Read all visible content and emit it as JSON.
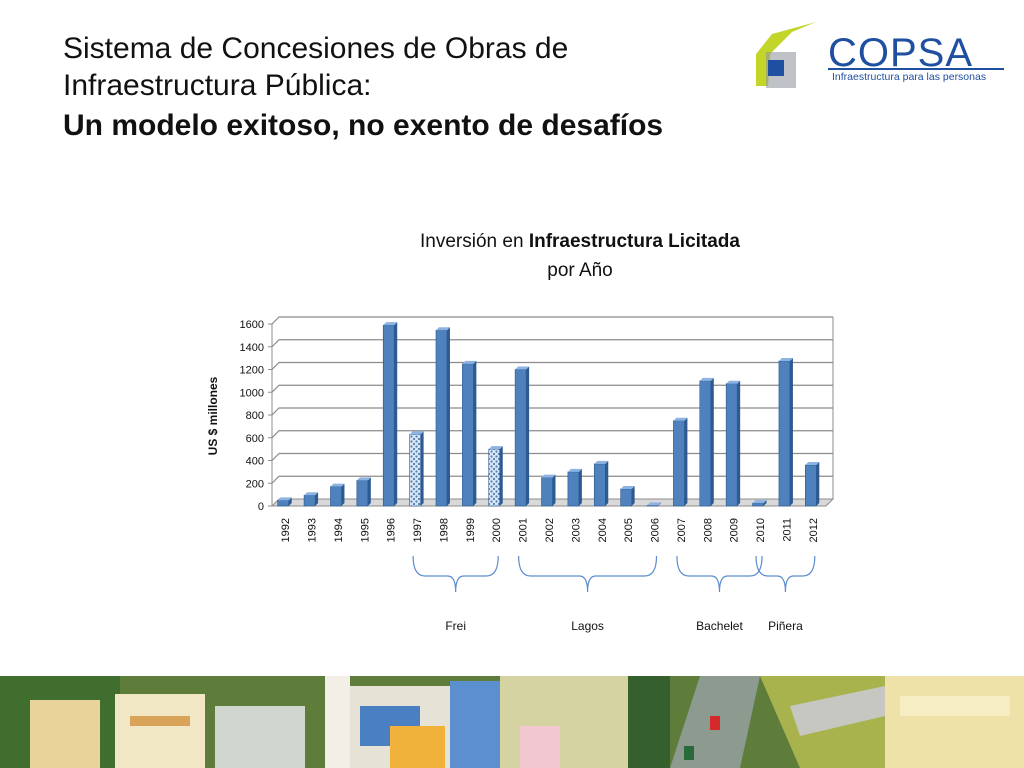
{
  "slide": {
    "title_line1": "Sistema de Concesiones de Obras de",
    "title_line2": "Infraestructura Pública:",
    "title_bold": "Un modelo exitoso, no exento de desafíos"
  },
  "logo": {
    "name": "COPSA",
    "tagline": "Infraestructura para las personas",
    "colors": {
      "blue": "#1f4fa0",
      "green": "#c4d52a",
      "grey": "#8a8f99"
    }
  },
  "chart_title": {
    "prefix": "Inversión en ",
    "bold": "Infraestructura Licitada",
    "line2": "por Año"
  },
  "chart_data": {
    "type": "bar",
    "ylabel": "US $ millones",
    "xlabel": "",
    "ylim": [
      0,
      1600
    ],
    "yticks": [
      0,
      200,
      400,
      600,
      800,
      1000,
      1200,
      1400,
      1600
    ],
    "grid": true,
    "categories": [
      "1992",
      "1993",
      "1994",
      "1995",
      "1996",
      "1997",
      "1998",
      "1999",
      "2000",
      "2001",
      "2002",
      "2003",
      "2004",
      "2005",
      "2006",
      "2007",
      "2008",
      "2009",
      "2010",
      "2011",
      "2012"
    ],
    "values": [
      50,
      95,
      170,
      225,
      1590,
      630,
      1545,
      1250,
      500,
      1200,
      250,
      300,
      370,
      150,
      5,
      750,
      1100,
      1075,
      25,
      1275,
      360
    ],
    "hatched": [
      "1997",
      "2000"
    ],
    "colors": {
      "bar": "#4f81bd",
      "bar_dark": "#2c5a91",
      "bar_top": "#8db3e2",
      "grid": "#8c8c8c"
    },
    "annotations": [
      {
        "label": "Frei",
        "from": "1997",
        "to": "2000"
      },
      {
        "label": "Lagos",
        "from": "2001",
        "to": "2006"
      },
      {
        "label": "Bachelet",
        "from": "2007",
        "to": "2010"
      },
      {
        "label": "Piñera",
        "from": "2010",
        "to": "2012"
      }
    ]
  }
}
